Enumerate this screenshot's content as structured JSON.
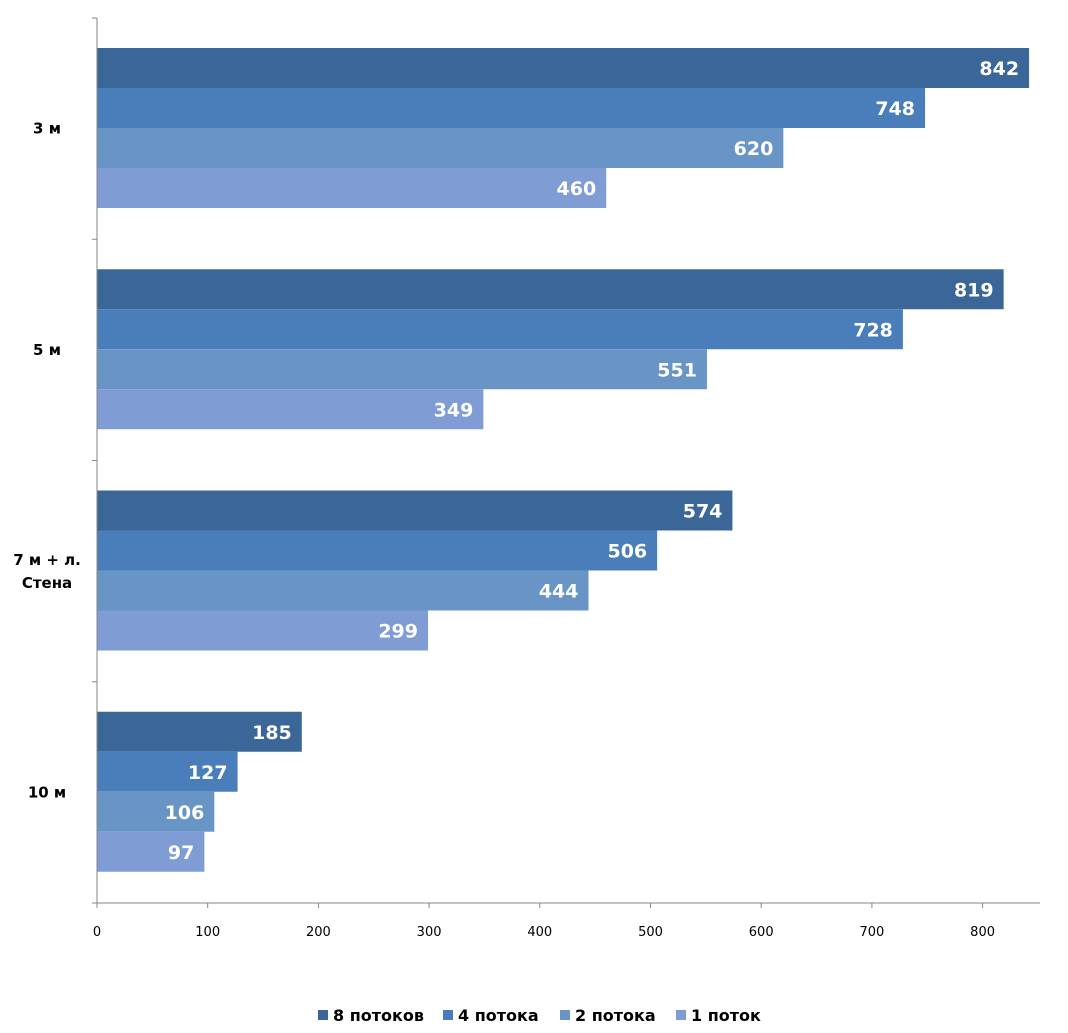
{
  "chart_data": {
    "type": "bar",
    "orientation": "horizontal",
    "categories": [
      "3 м",
      "5 м",
      "7 м + л. Стена",
      "10 м"
    ],
    "category_lines": [
      [
        "3 м"
      ],
      [
        "5 м"
      ],
      [
        "7 м + л.",
        "Стена"
      ],
      [
        "10 м"
      ]
    ],
    "series": [
      {
        "name": "8 потоков",
        "color": "#3b6698",
        "values": [
          842,
          819,
          574,
          185
        ]
      },
      {
        "name": "4 потока",
        "color": "#4a7ebb",
        "values": [
          748,
          728,
          506,
          127
        ]
      },
      {
        "name": "2 потока",
        "color": "#6895c6",
        "values": [
          620,
          551,
          444,
          106
        ]
      },
      {
        "name": "1 поток",
        "color": "#7f9cd5",
        "values": [
          460,
          349,
          299,
          97
        ]
      }
    ],
    "xlim": [
      0,
      850
    ],
    "xticks": [
      0,
      100,
      200,
      300,
      400,
      500,
      600,
      700,
      800
    ],
    "grid": false,
    "data_labels": true,
    "legend": "bottom"
  }
}
